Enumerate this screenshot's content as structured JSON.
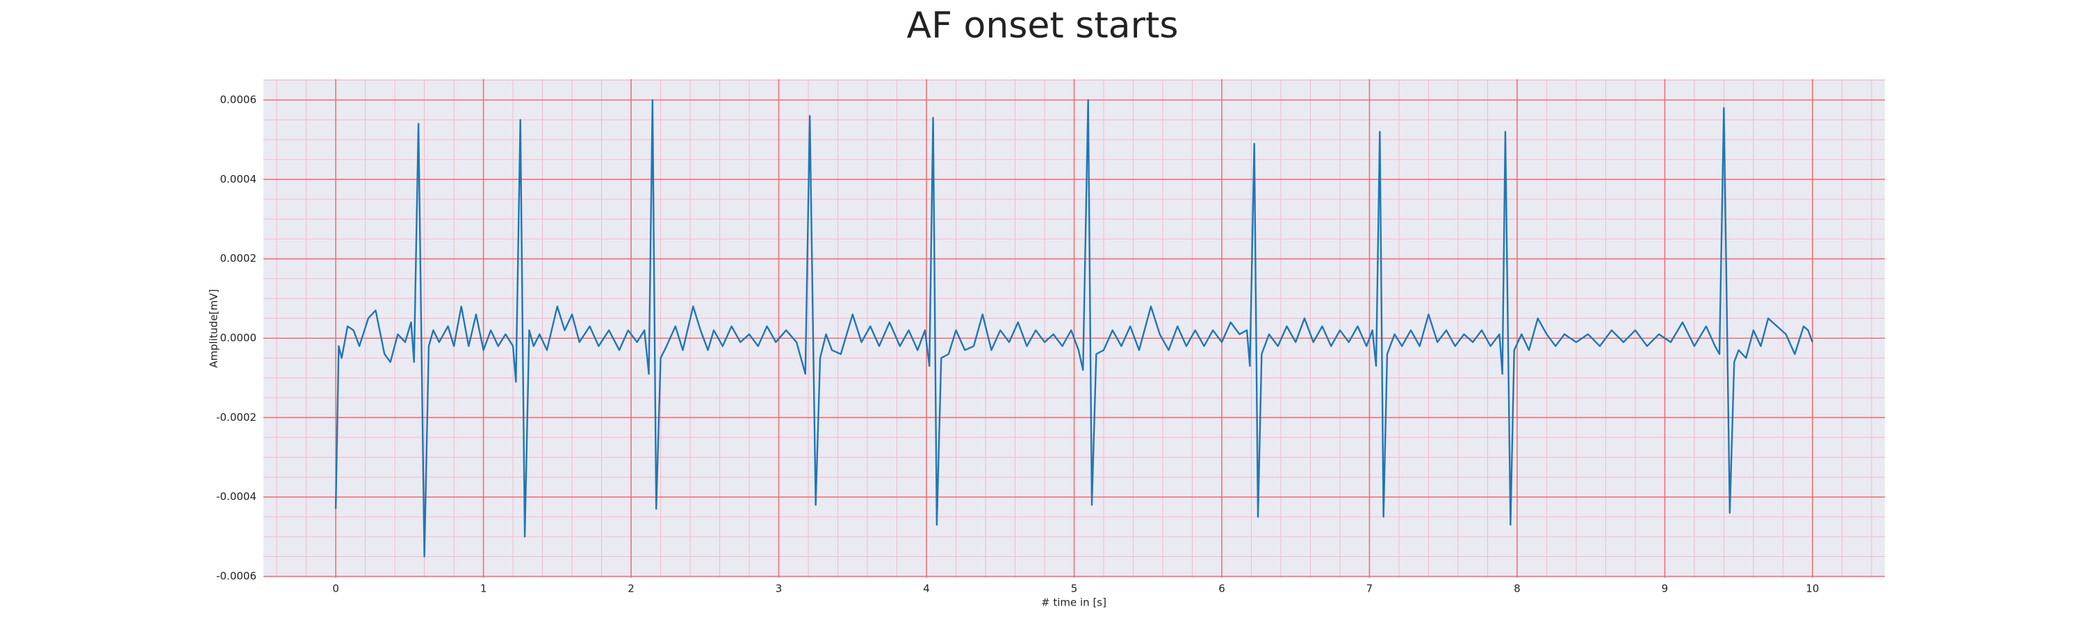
{
  "chart_data": {
    "type": "line",
    "title": "AF onset starts",
    "xlabel": "# time in [s]",
    "ylabel": "Amplitude[mV]",
    "xlim": [
      -0.49,
      10.49
    ],
    "ylim": [
      -0.0006035,
      0.0006525
    ],
    "xticks": [
      0,
      1,
      2,
      3,
      4,
      5,
      6,
      7,
      8,
      9,
      10
    ],
    "yticks": [
      {
        "value": -0.0006,
        "label": "-0.0006"
      },
      {
        "value": -0.0004,
        "label": "-0.0004"
      },
      {
        "value": -0.0002,
        "label": "-0.0002"
      },
      {
        "value": 0,
        "label": "0.0000"
      },
      {
        "value": 0.0002,
        "label": "0.0002"
      },
      {
        "value": 0.0004,
        "label": "0.0004"
      },
      {
        "value": 0.0006,
        "label": "0.0006"
      }
    ],
    "grid": true,
    "series": [
      {
        "color": "#1f77b4",
        "x": [
          0,
          0.02,
          0.04,
          0.08,
          0.12,
          0.16,
          0.22,
          0.27,
          0.33,
          0.37,
          0.42,
          0.47,
          0.51,
          0.53,
          0.56,
          0.6,
          0.63,
          0.66,
          0.7,
          0.76,
          0.8,
          0.85,
          0.9,
          0.95,
          1.0,
          1.05,
          1.1,
          1.15,
          1.2,
          1.22,
          1.25,
          1.28,
          1.31,
          1.34,
          1.38,
          1.43,
          1.5,
          1.55,
          1.6,
          1.65,
          1.72,
          1.78,
          1.85,
          1.92,
          1.98,
          2.04,
          2.09,
          2.12,
          2.145,
          2.17,
          2.2,
          2.24,
          2.3,
          2.35,
          2.42,
          2.47,
          2.52,
          2.56,
          2.62,
          2.68,
          2.74,
          2.8,
          2.86,
          2.92,
          2.98,
          3.05,
          3.12,
          3.18,
          3.21,
          3.25,
          3.28,
          3.32,
          3.36,
          3.42,
          3.5,
          3.56,
          3.62,
          3.68,
          3.75,
          3.82,
          3.88,
          3.94,
          3.99,
          4.02,
          4.045,
          4.07,
          4.1,
          4.15,
          4.2,
          4.26,
          4.32,
          4.38,
          4.44,
          4.5,
          4.56,
          4.62,
          4.68,
          4.74,
          4.8,
          4.86,
          4.92,
          4.98,
          5.03,
          5.06,
          5.095,
          5.12,
          5.15,
          5.2,
          5.26,
          5.32,
          5.38,
          5.44,
          5.52,
          5.58,
          5.64,
          5.7,
          5.76,
          5.82,
          5.88,
          5.94,
          6.0,
          6.06,
          6.12,
          6.17,
          6.19,
          6.22,
          6.245,
          6.27,
          6.32,
          6.38,
          6.44,
          6.5,
          6.56,
          6.62,
          6.68,
          6.74,
          6.8,
          6.86,
          6.92,
          6.98,
          7.02,
          7.045,
          7.07,
          7.095,
          7.12,
          7.17,
          7.22,
          7.28,
          7.34,
          7.4,
          7.46,
          7.52,
          7.58,
          7.64,
          7.7,
          7.76,
          7.82,
          7.88,
          7.9,
          7.92,
          7.955,
          7.98,
          8.03,
          8.08,
          8.14,
          8.2,
          8.26,
          8.32,
          8.4,
          8.48,
          8.56,
          8.64,
          8.72,
          8.8,
          8.88,
          8.96,
          9.04,
          9.12,
          9.2,
          9.28,
          9.34,
          9.37,
          9.4,
          9.44,
          9.47,
          9.5,
          9.55,
          9.6,
          9.65,
          9.7,
          9.76,
          9.82,
          9.88,
          9.94,
          9.97,
          10.0
        ],
        "values": [
          -0.00043,
          -2e-05,
          -5e-05,
          3e-05,
          2e-05,
          -2e-05,
          5e-05,
          7e-05,
          -4e-05,
          -6e-05,
          1e-05,
          -1e-05,
          4e-05,
          -6e-05,
          0.00054,
          -0.00055,
          -2e-05,
          2e-05,
          -1e-05,
          3e-05,
          -2e-05,
          8e-05,
          -2e-05,
          6e-05,
          -3e-05,
          2e-05,
          -2e-05,
          1e-05,
          -2e-05,
          -0.00011,
          0.00055,
          -0.0005,
          2e-05,
          -2e-05,
          1e-05,
          -3e-05,
          8e-05,
          2e-05,
          6e-05,
          -1e-05,
          3e-05,
          -2e-05,
          2e-05,
          -3e-05,
          2e-05,
          -1e-05,
          2e-05,
          -9e-05,
          0.0006,
          -0.00043,
          -5e-05,
          -2e-05,
          3e-05,
          -3e-05,
          8e-05,
          2e-05,
          -3e-05,
          2e-05,
          -2e-05,
          3e-05,
          -1e-05,
          1e-05,
          -2e-05,
          3e-05,
          -1e-05,
          2e-05,
          -1e-05,
          -9e-05,
          0.00056,
          -0.00042,
          -5e-05,
          1e-05,
          -3e-05,
          -4e-05,
          6e-05,
          -1e-05,
          3e-05,
          -2e-05,
          4e-05,
          -2e-05,
          2e-05,
          -3e-05,
          2e-05,
          -7e-05,
          0.000555,
          -0.00047,
          -5e-05,
          -4e-05,
          2e-05,
          -3e-05,
          -2e-05,
          6e-05,
          -3e-05,
          2e-05,
          -1e-05,
          4e-05,
          -2e-05,
          2e-05,
          -1e-05,
          1e-05,
          -2e-05,
          2e-05,
          -3e-05,
          -8e-05,
          0.0006,
          -0.00042,
          -4e-05,
          -3e-05,
          2e-05,
          -2e-05,
          3e-05,
          -3e-05,
          8e-05,
          1e-05,
          -3e-05,
          3e-05,
          -2e-05,
          2e-05,
          -2e-05,
          2e-05,
          -1e-05,
          4e-05,
          1e-05,
          2e-05,
          -7e-05,
          0.00049,
          -0.00045,
          -4e-05,
          1e-05,
          -2e-05,
          3e-05,
          -1e-05,
          5e-05,
          -1e-05,
          3e-05,
          -2e-05,
          2e-05,
          -1e-05,
          3e-05,
          -2e-05,
          2e-05,
          -7e-05,
          0.00052,
          -0.00045,
          -4e-05,
          1e-05,
          -2e-05,
          2e-05,
          -2e-05,
          6e-05,
          -1e-05,
          2e-05,
          -2e-05,
          1e-05,
          -1e-05,
          2e-05,
          -2e-05,
          1e-05,
          -9e-05,
          0.00052,
          -0.00047,
          -3e-05,
          1e-05,
          -3e-05,
          5e-05,
          1e-05,
          -2e-05,
          1e-05,
          -1e-05,
          1e-05,
          -2e-05,
          2e-05,
          -1e-05,
          2e-05,
          -2e-05,
          1e-05,
          -1e-05,
          4e-05,
          -2e-05,
          3e-05,
          -2e-05,
          -4e-05,
          0.00058,
          -0.00044,
          -6e-05,
          -3e-05,
          -5e-05,
          2e-05,
          -2e-05,
          5e-05,
          3e-05,
          1e-05,
          -4e-05,
          3e-05,
          2e-05,
          -1e-05
        ]
      }
    ]
  }
}
